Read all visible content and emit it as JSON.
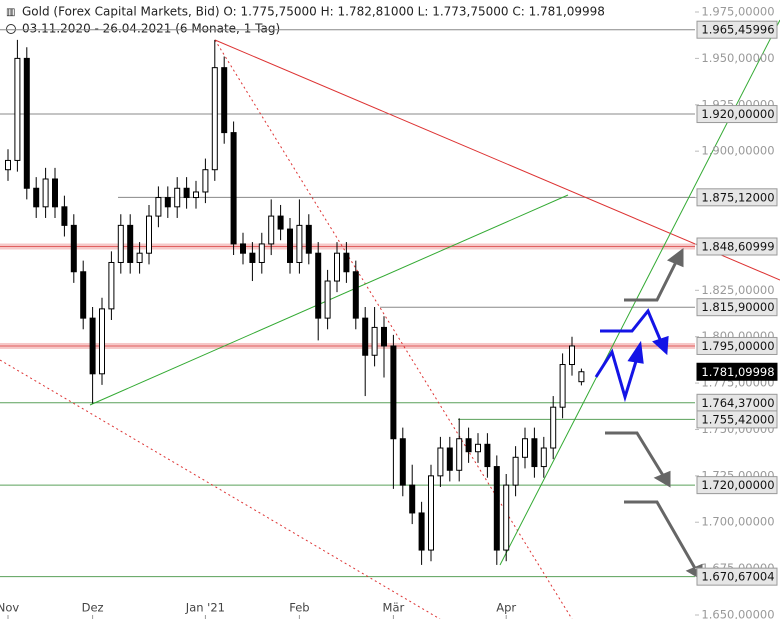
{
  "header": {
    "line1": "Gold (Forex Capital Markets, Bid)  O: 1.775,75000  H: 1.782,81000  L: 1.773,75000  C: 1.781,09998",
    "line2": "03.11.2020 - 26.04.2021   (6 Monate, 1 Tag)"
  },
  "chart_data": {
    "type": "candlestick",
    "categories": [
      "Nov",
      null,
      null,
      null,
      null,
      null,
      null,
      null,
      null,
      "Dez",
      null,
      null,
      null,
      null,
      null,
      null,
      null,
      null,
      null,
      null,
      null,
      "Jan '21",
      null,
      null,
      null,
      null,
      null,
      null,
      null,
      null,
      null,
      "Feb",
      null,
      null,
      null,
      null,
      null,
      null,
      null,
      null,
      null,
      "Mär",
      null,
      null,
      null,
      null,
      null,
      null,
      null,
      null,
      null,
      null,
      null,
      "Apr",
      null,
      null,
      null,
      null,
      null,
      null,
      null,
      null
    ],
    "candles": [
      [
        1890,
        1901,
        1884,
        1895
      ],
      [
        1895,
        1960,
        1889,
        1950
      ],
      [
        1950,
        1956,
        1874,
        1880
      ],
      [
        1880,
        1886,
        1864,
        1870
      ],
      [
        1870,
        1891,
        1864,
        1885
      ],
      [
        1885,
        1891,
        1864,
        1870
      ],
      [
        1870,
        1876,
        1854,
        1860
      ],
      [
        1860,
        1866,
        1829,
        1835
      ],
      [
        1835,
        1841,
        1804,
        1810
      ],
      [
        1810,
        1816,
        1764,
        1780
      ],
      [
        1780,
        1821,
        1774,
        1815
      ],
      [
        1815,
        1846,
        1809,
        1840
      ],
      [
        1840,
        1866,
        1834,
        1860
      ],
      [
        1860,
        1866,
        1834,
        1840
      ],
      [
        1840,
        1851,
        1834,
        1845
      ],
      [
        1845,
        1871,
        1839,
        1865
      ],
      [
        1865,
        1881,
        1859,
        1875
      ],
      [
        1875,
        1881,
        1864,
        1870
      ],
      [
        1870,
        1886,
        1864,
        1880
      ],
      [
        1880,
        1886,
        1869,
        1875
      ],
      [
        1875,
        1884,
        1869,
        1878
      ],
      [
        1878,
        1896,
        1872,
        1890
      ],
      [
        1890,
        1960,
        1884,
        1945
      ],
      [
        1945,
        1951,
        1904,
        1910
      ],
      [
        1910,
        1916,
        1844,
        1850
      ],
      [
        1850,
        1856,
        1839,
        1845
      ],
      [
        1845,
        1851,
        1830,
        1840
      ],
      [
        1840,
        1856,
        1834,
        1850
      ],
      [
        1850,
        1874,
        1844,
        1865
      ],
      [
        1865,
        1871,
        1852,
        1858
      ],
      [
        1858,
        1864,
        1834,
        1840
      ],
      [
        1840,
        1874,
        1834,
        1860
      ],
      [
        1860,
        1866,
        1839,
        1845
      ],
      [
        1845,
        1851,
        1798,
        1810
      ],
      [
        1810,
        1836,
        1804,
        1830
      ],
      [
        1830,
        1851,
        1824,
        1845
      ],
      [
        1845,
        1851,
        1829,
        1835
      ],
      [
        1835,
        1841,
        1804,
        1810
      ],
      [
        1810,
        1816,
        1768,
        1790
      ],
      [
        1790,
        1816,
        1784,
        1805
      ],
      [
        1805,
        1811,
        1778,
        1795
      ],
      [
        1795,
        1801,
        1718,
        1745
      ],
      [
        1745,
        1751,
        1714,
        1720
      ],
      [
        1720,
        1731,
        1699,
        1705
      ],
      [
        1705,
        1711,
        1677,
        1685
      ],
      [
        1685,
        1731,
        1679,
        1725
      ],
      [
        1725,
        1746,
        1719,
        1740
      ],
      [
        1740,
        1746,
        1722,
        1728
      ],
      [
        1728,
        1756,
        1722,
        1745
      ],
      [
        1745,
        1751,
        1732,
        1738
      ],
      [
        1738,
        1748,
        1732,
        1742
      ],
      [
        1742,
        1748,
        1724,
        1730
      ],
      [
        1730,
        1736,
        1677,
        1685
      ],
      [
        1685,
        1726,
        1679,
        1720
      ],
      [
        1720,
        1741,
        1714,
        1735
      ],
      [
        1735,
        1751,
        1729,
        1745
      ],
      [
        1745,
        1751,
        1724,
        1730
      ],
      [
        1730,
        1746,
        1724,
        1740
      ],
      [
        1740,
        1768,
        1734,
        1762
      ],
      [
        1762,
        1791,
        1756,
        1785
      ],
      [
        1785,
        1800,
        1779,
        1795
      ],
      [
        1775.75,
        1782.81,
        1773.75,
        1781.09998
      ]
    ],
    "ylim": [
      1650,
      1975
    ],
    "yticks": [
      {
        "value": 1975,
        "label": "1.975,00000"
      },
      {
        "value": 1950,
        "label": "1.950,00000"
      },
      {
        "value": 1925,
        "label": "1.925,00000"
      },
      {
        "value": 1900,
        "label": "1.900,00000"
      },
      {
        "value": 1875,
        "label": "1.875,00000"
      },
      {
        "value": 1850,
        "label": "1.850,00000"
      },
      {
        "value": 1825,
        "label": "1.825,00000"
      },
      {
        "value": 1800,
        "label": "1.800,00000"
      },
      {
        "value": 1775,
        "label": "1.775,00000"
      },
      {
        "value": 1750,
        "label": "1.750,00000"
      },
      {
        "value": 1725,
        "label": "1.725,00000"
      },
      {
        "value": 1700,
        "label": "1.700,00000"
      },
      {
        "value": 1675,
        "label": "1.675,00000"
      },
      {
        "value": 1650,
        "label": "1.650,00000"
      }
    ],
    "levels": [
      {
        "value": 1965.45996,
        "label": "1.965,45996",
        "color": "#888888"
      },
      {
        "value": 1920,
        "label": "1.920,00000",
        "color": "#888888"
      },
      {
        "value": 1875.12,
        "label": "1.875,12000",
        "color": "#888888"
      },
      {
        "value": 1848.60999,
        "label": "1.848,60999",
        "color": "#e06060"
      },
      {
        "value": 1815.9,
        "label": "1.815,90000",
        "color": "#888888"
      },
      {
        "value": 1795,
        "label": "1.795,00000",
        "color": "#e06060"
      },
      {
        "value": 1781.09998,
        "label": "1.781,09998",
        "color": "#000000"
      },
      {
        "value": 1764.37,
        "label": "1.764,37000",
        "color": "#5aa05a"
      },
      {
        "value": 1755.42,
        "label": "1.755,42000",
        "color": "#5aa05a"
      },
      {
        "value": 1720,
        "label": "1.720,00000",
        "color": "#5aa05a"
      },
      {
        "value": 1670.67004,
        "label": "1.670,67004",
        "color": "#5aa05a"
      }
    ]
  }
}
